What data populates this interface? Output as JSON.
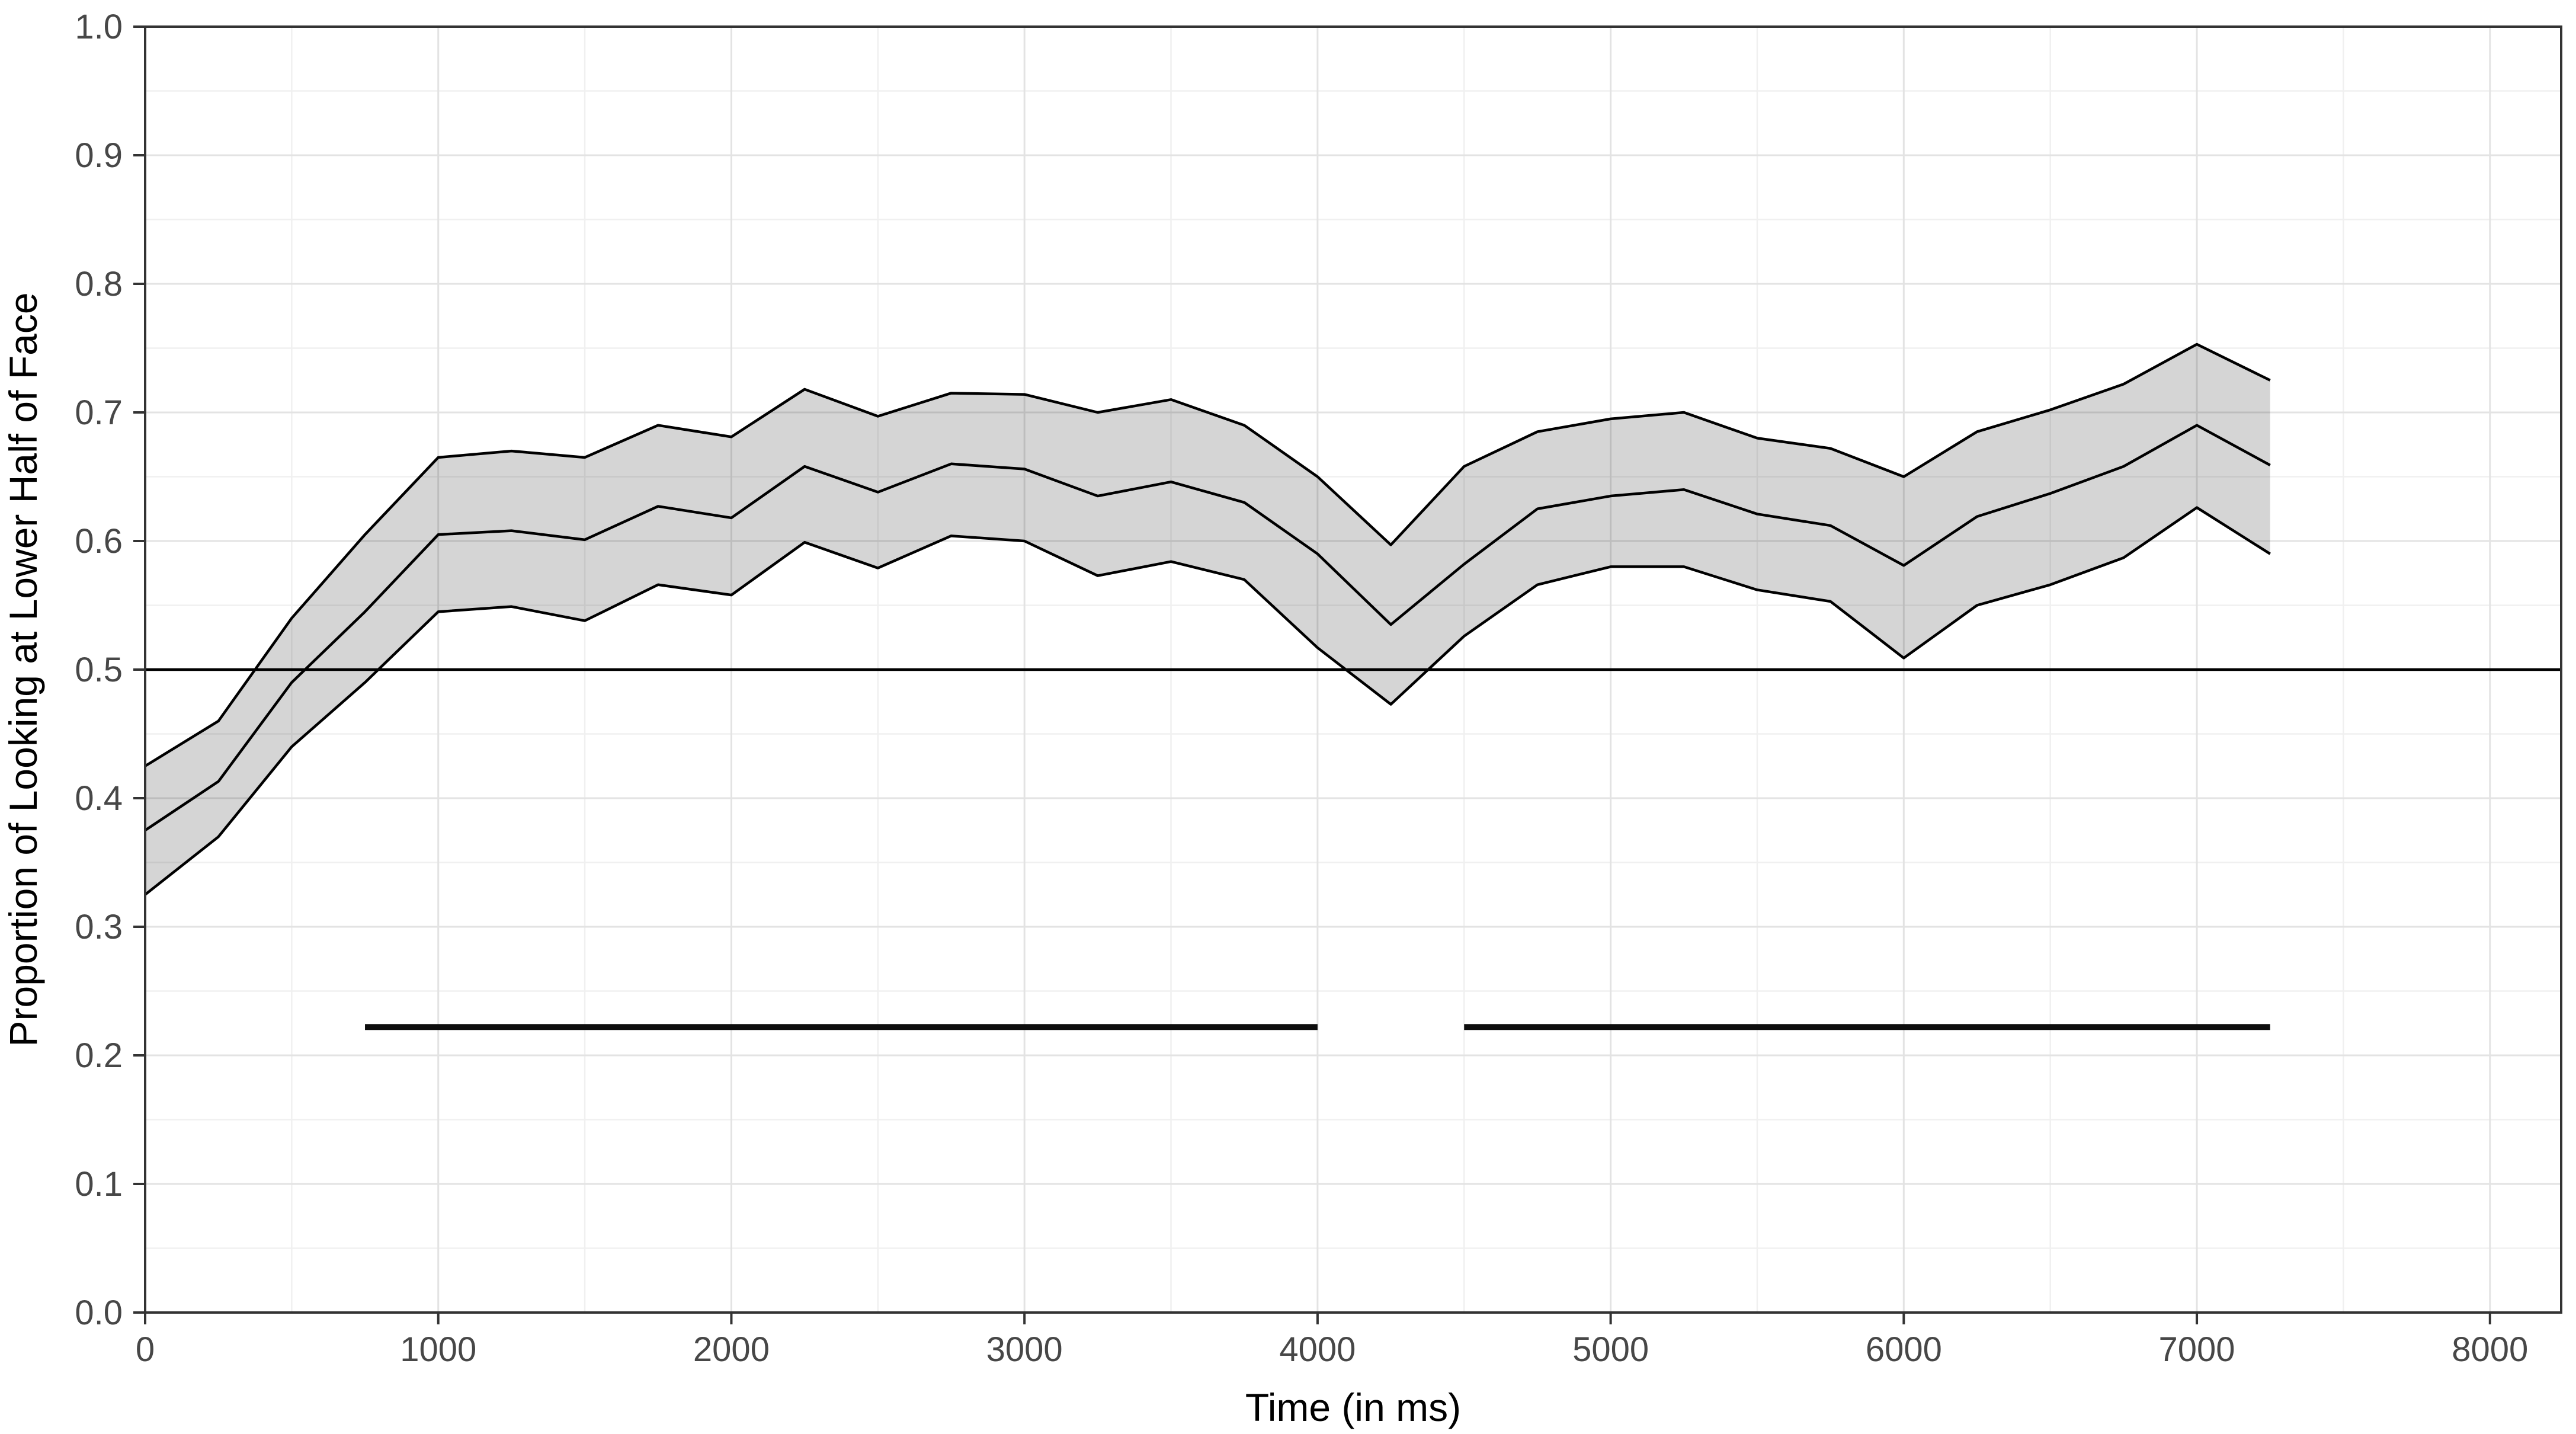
{
  "figure": {
    "background": "#ffffff"
  },
  "chart_data": {
    "type": "line",
    "title": "",
    "xlabel": "Time (in ms)",
    "ylabel": "Proportion of Looking at Lower Half of Face",
    "xlim": [
      0,
      8243
    ],
    "ylim": [
      0.0,
      1.0
    ],
    "grid": "on",
    "legend": "none",
    "x_ticks": [
      0,
      1000,
      2000,
      3000,
      4000,
      5000,
      6000,
      7000,
      8000
    ],
    "x_tick_labels": [
      "0",
      "1000",
      "2000",
      "3000",
      "4000",
      "5000",
      "6000",
      "7000",
      "8000"
    ],
    "x_minor_ticks": [
      500,
      1500,
      2500,
      3500,
      4500,
      5500,
      6500,
      7500
    ],
    "y_ticks": [
      0.0,
      0.1,
      0.2,
      0.3,
      0.4,
      0.5,
      0.6,
      0.7,
      0.8,
      0.9,
      1.0
    ],
    "y_tick_labels": [
      "0.0",
      "0.1",
      "0.2",
      "0.3",
      "0.4",
      "0.5",
      "0.6",
      "0.7",
      "0.8",
      "0.9",
      "1.0"
    ],
    "y_minor_ticks": [
      0.05,
      0.15,
      0.25,
      0.35,
      0.45,
      0.55,
      0.65,
      0.75,
      0.85,
      0.95
    ],
    "x": [
      0,
      250,
      500,
      750,
      1000,
      1250,
      1500,
      1750,
      2000,
      2250,
      2500,
      2750,
      3000,
      3250,
      3500,
      3750,
      4000,
      4250,
      4500,
      4750,
      5000,
      5250,
      5500,
      5750,
      6000,
      6250,
      6500,
      6750,
      7000,
      7250
    ],
    "series": [
      {
        "name": "upper_ci",
        "values": [
          0.425,
          0.46,
          0.54,
          0.605,
          0.665,
          0.67,
          0.665,
          0.69,
          0.681,
          0.718,
          0.697,
          0.715,
          0.714,
          0.7,
          0.71,
          0.69,
          0.65,
          0.597,
          0.658,
          0.685,
          0.695,
          0.7,
          0.68,
          0.672,
          0.65,
          0.685,
          0.702,
          0.722,
          0.753,
          0.725
        ]
      },
      {
        "name": "mean",
        "values": [
          0.375,
          0.413,
          0.49,
          0.545,
          0.605,
          0.608,
          0.601,
          0.627,
          0.618,
          0.658,
          0.638,
          0.66,
          0.656,
          0.635,
          0.646,
          0.63,
          0.59,
          0.535,
          0.582,
          0.625,
          0.635,
          0.64,
          0.621,
          0.612,
          0.581,
          0.619,
          0.637,
          0.658,
          0.69,
          0.659
        ]
      },
      {
        "name": "lower_ci",
        "values": [
          0.325,
          0.37,
          0.44,
          0.49,
          0.545,
          0.549,
          0.538,
          0.566,
          0.558,
          0.599,
          0.579,
          0.604,
          0.6,
          0.573,
          0.584,
          0.57,
          0.517,
          0.473,
          0.526,
          0.566,
          0.58,
          0.58,
          0.562,
          0.553,
          0.509,
          0.55,
          0.566,
          0.587,
          0.626,
          0.59
        ]
      }
    ],
    "reference_line_y": 0.5,
    "significance_bars": {
      "y": 0.222,
      "segments": [
        [
          750,
          4000
        ],
        [
          4500,
          7250
        ]
      ]
    },
    "colors": {
      "line": "#000000",
      "ribbon_fill": "rgba(0,0,0,0.165)",
      "reference_line": "#000000",
      "significance_bar": "#0d0d0d",
      "grid_major": "#e3e3e3",
      "grid_minor": "#f0f0f0",
      "panel_border": "#333333",
      "tick_mark": "#333333",
      "tick_label": "#474747",
      "axis_title": "#000000",
      "panel_background": "#ffffff"
    }
  }
}
